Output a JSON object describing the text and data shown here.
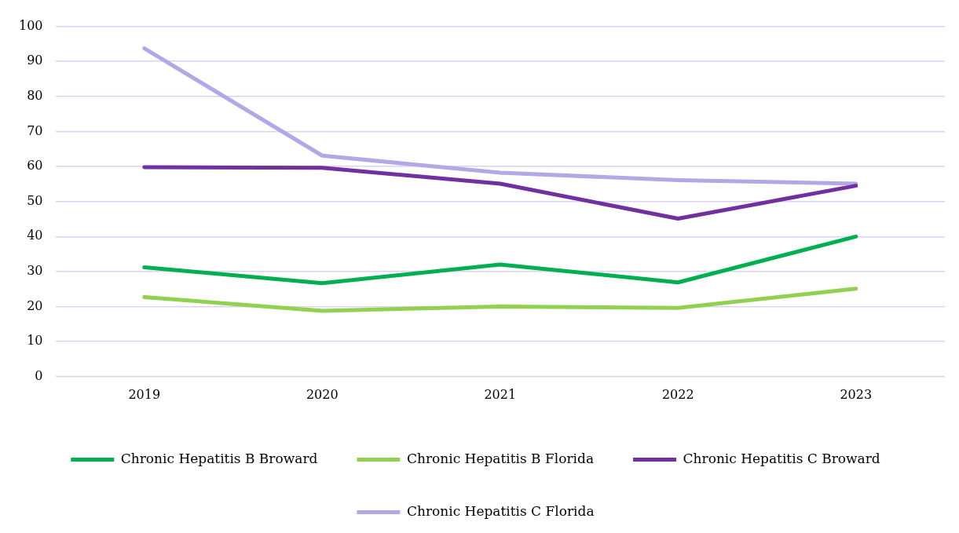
{
  "chart_data": {
    "type": "line",
    "categories": [
      "2019",
      "2020",
      "2021",
      "2022",
      "2023"
    ],
    "series": [
      {
        "name": "Chronic Hepatitis B Broward",
        "color": "#00b050",
        "values": [
          31.2,
          26.7,
          32.0,
          26.9,
          40.0
        ]
      },
      {
        "name": "Chronic Hepatitis B Florida",
        "color": "#92d050",
        "values": [
          22.7,
          18.8,
          20.0,
          19.6,
          25.1
        ]
      },
      {
        "name": "Chronic Hepatitis C Broward",
        "color": "#7030a0",
        "values": [
          59.8,
          59.6,
          55.1,
          45.1,
          54.5
        ]
      },
      {
        "name": "Chronic Hepatitis C Florida",
        "color": "#b4a7e5",
        "values": [
          93.7,
          63.1,
          58.2,
          56.1,
          55.1
        ]
      }
    ],
    "ylim": [
      0,
      100
    ],
    "yticks": [
      0,
      10,
      20,
      30,
      40,
      50,
      60,
      70,
      80,
      90,
      100
    ],
    "grid": "y",
    "legend": "bottom",
    "marker": "none",
    "line_style": "solid"
  }
}
